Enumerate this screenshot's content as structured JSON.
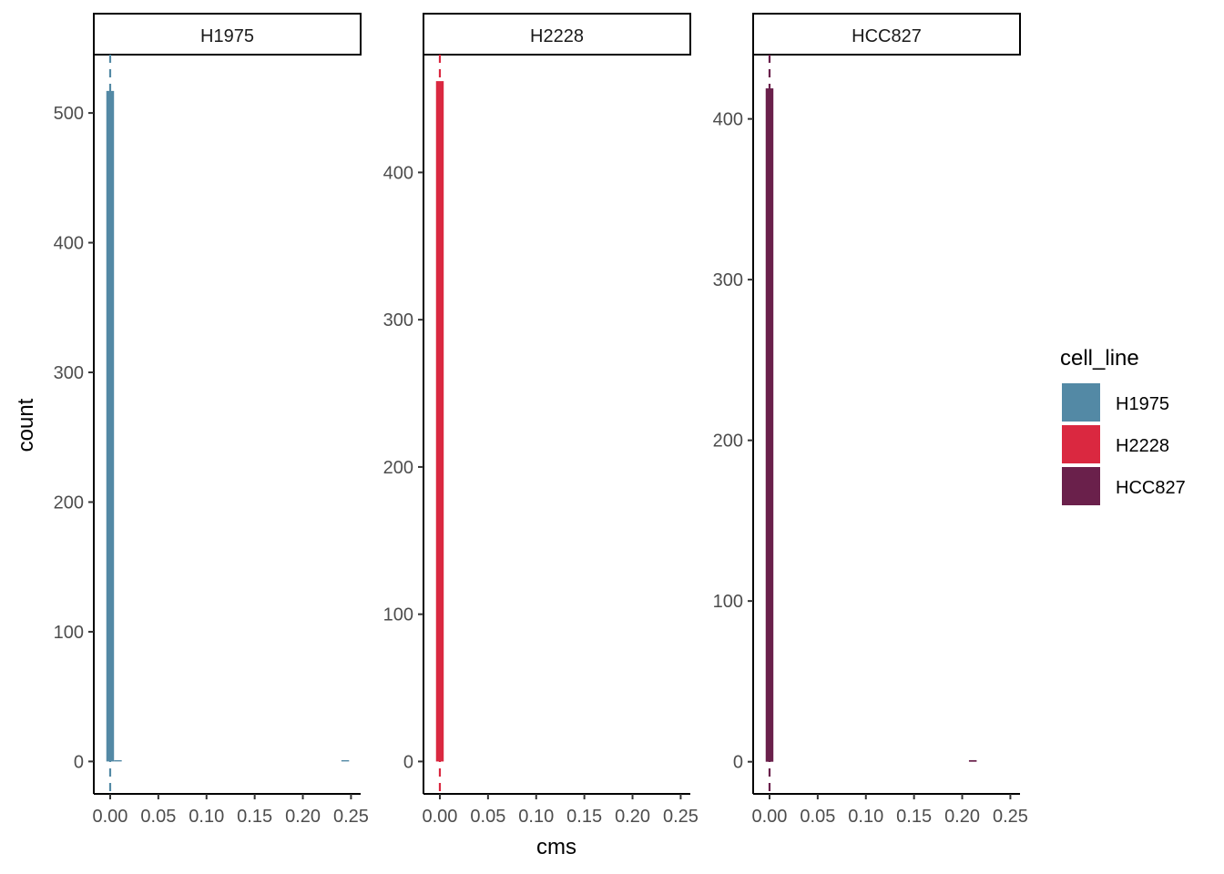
{
  "chart_data": {
    "type": "bar",
    "subtype": "histogram",
    "facet_by": "cell_line",
    "xlabel": "cms",
    "ylabel": "count",
    "legend": {
      "title": "cell_line",
      "placement": "right",
      "entries": [
        {
          "label": "H1975",
          "color": "#5389A5"
        },
        {
          "label": "H2228",
          "color": "#DA2840"
        },
        {
          "label": "HCC827",
          "color": "#6A204B"
        }
      ]
    },
    "grid": false,
    "panels": [
      {
        "label": "H1975",
        "color": "#5389A5",
        "xlim": [
          -0.017,
          0.26
        ],
        "ylim": [
          -25,
          545
        ],
        "xticks": [
          0.0,
          0.05,
          0.1,
          0.15,
          0.2,
          0.25
        ],
        "xtick_labels": [
          "0.00",
          "0.05",
          "0.10",
          "0.15",
          "0.20",
          "0.25"
        ],
        "yticks": [
          0,
          100,
          200,
          300,
          400,
          500
        ],
        "ytick_labels": [
          "0",
          "100",
          "200",
          "300",
          "400",
          "500"
        ],
        "median_line": 0.0,
        "bins": [
          {
            "x0": -0.004,
            "x1": 0.004,
            "count": 517
          },
          {
            "x0": 0.004,
            "x1": 0.012,
            "count": 1
          },
          {
            "x0": 0.24,
            "x1": 0.248,
            "count": 1
          }
        ]
      },
      {
        "label": "H2228",
        "color": "#DA2840",
        "xlim": [
          -0.017,
          0.26
        ],
        "ylim": [
          -22,
          480
        ],
        "xticks": [
          0.0,
          0.05,
          0.1,
          0.15,
          0.2,
          0.25
        ],
        "xtick_labels": [
          "0.00",
          "0.05",
          "0.10",
          "0.15",
          "0.20",
          "0.25"
        ],
        "yticks": [
          0,
          100,
          200,
          300,
          400
        ],
        "ytick_labels": [
          "0",
          "100",
          "200",
          "300",
          "400"
        ],
        "median_line": 0.0,
        "bins": [
          {
            "x0": -0.004,
            "x1": 0.004,
            "count": 462
          }
        ]
      },
      {
        "label": "HCC827",
        "color": "#6A204B",
        "xlim": [
          -0.017,
          0.26
        ],
        "ylim": [
          -20,
          440
        ],
        "xticks": [
          0.0,
          0.05,
          0.1,
          0.15,
          0.2,
          0.25
        ],
        "xtick_labels": [
          "0.00",
          "0.05",
          "0.10",
          "0.15",
          "0.20",
          "0.25"
        ],
        "yticks": [
          0,
          100,
          200,
          300,
          400
        ],
        "ytick_labels": [
          "0",
          "100",
          "200",
          "300",
          "400"
        ],
        "median_line": 0.0,
        "bins": [
          {
            "x0": -0.004,
            "x1": 0.004,
            "count": 419
          },
          {
            "x0": 0.207,
            "x1": 0.215,
            "count": 1
          }
        ]
      }
    ]
  }
}
